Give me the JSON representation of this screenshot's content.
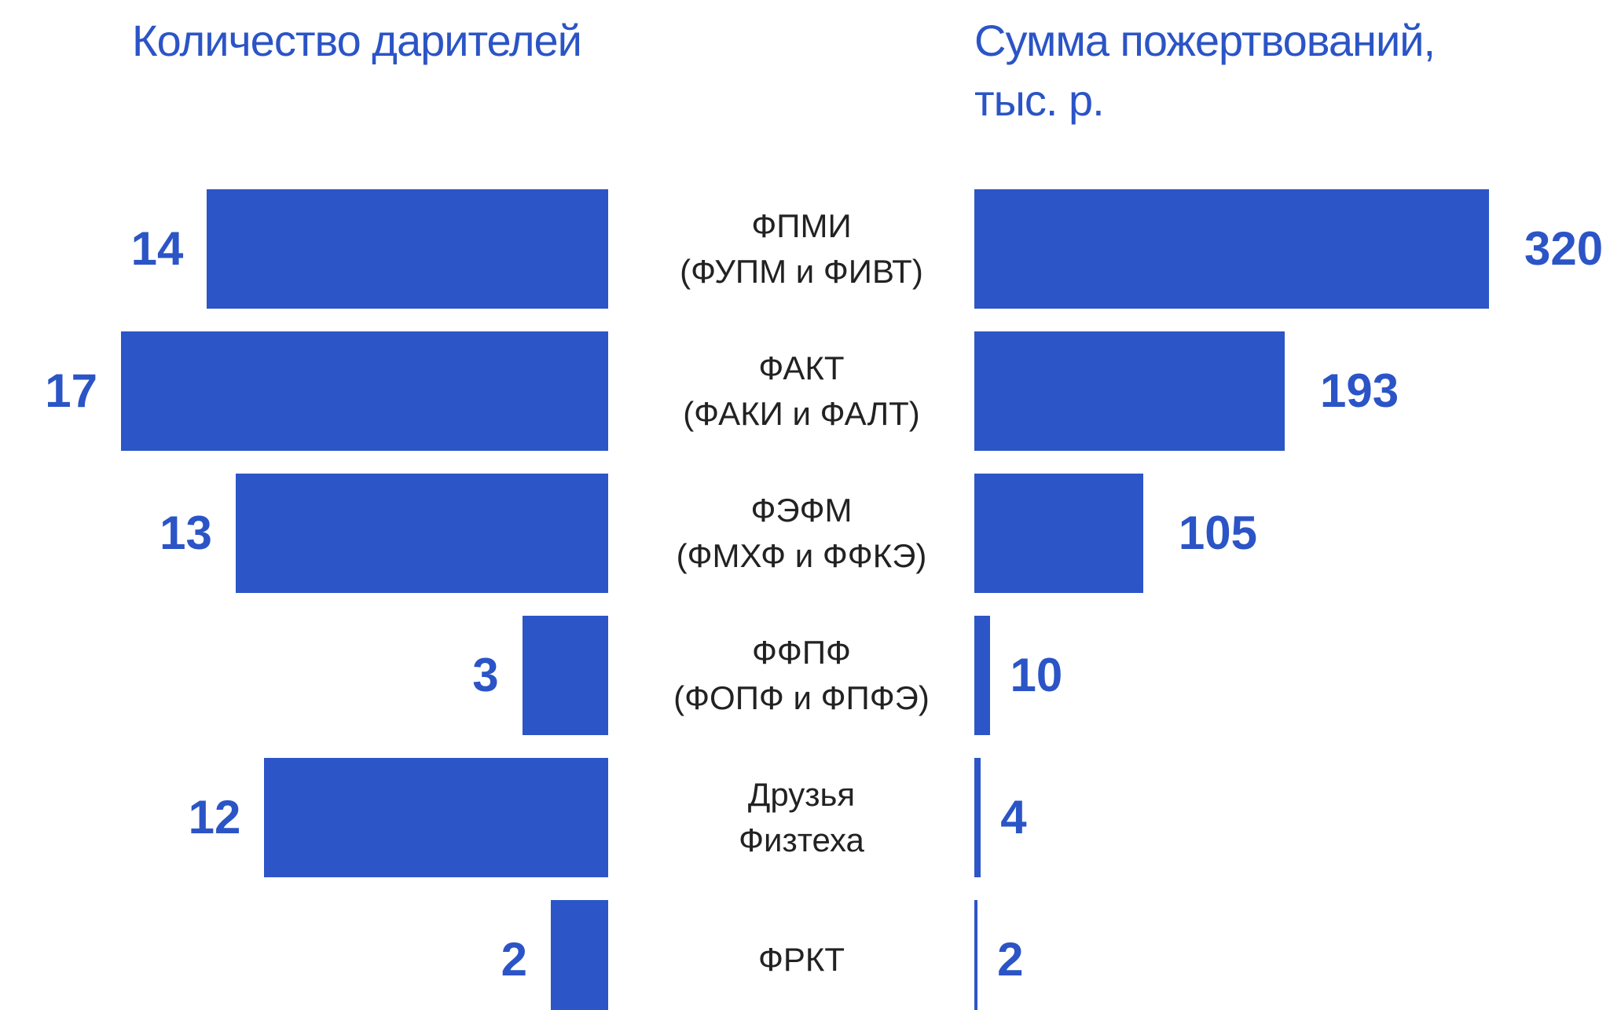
{
  "chart_data": {
    "type": "butterfly",
    "categories": [
      "ФПМИ\n(ФУПМ и ФИВТ)",
      "ФАКТ\n(ФАКИ и ФАЛТ)",
      "ФЭФМ\n(ФМХФ и ФФКЭ)",
      "ФФПФ\n(ФОПФ и ФПФЭ)",
      "Друзья\nФизтеха",
      "ФРКТ"
    ],
    "series": [
      {
        "name": "Количество дарителей",
        "color": "#2c55c7",
        "values": [
          14,
          17,
          13,
          3,
          12,
          2
        ]
      },
      {
        "name": "Сумма пожертвований,\nтыс. р.",
        "color": "#2c55c7",
        "values": [
          320,
          193,
          105,
          10,
          4,
          2
        ]
      }
    ]
  }
}
